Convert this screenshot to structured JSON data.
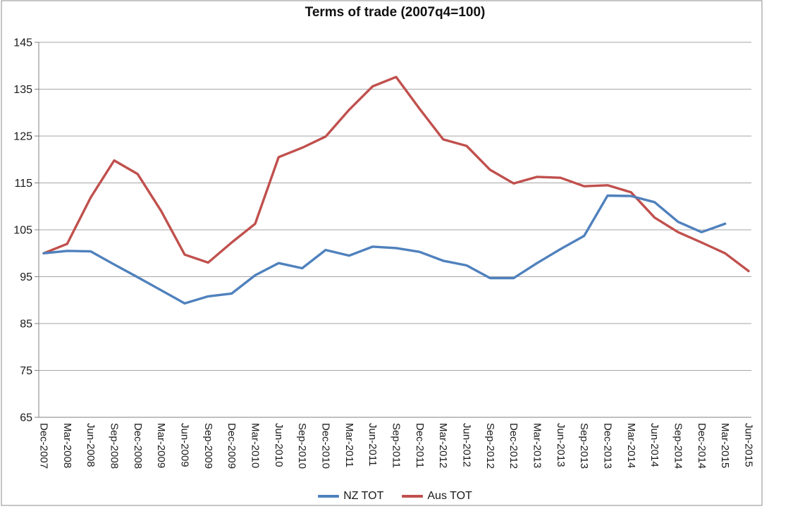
{
  "chart_data": {
    "type": "line",
    "title": "Terms of trade (2007q4=100)",
    "categories": [
      "Dec-2007",
      "Mar-2008",
      "Jun-2008",
      "Sep-2008",
      "Dec-2008",
      "Mar-2009",
      "Jun-2009",
      "Sep-2009",
      "Dec-2009",
      "Mar-2010",
      "Jun-2010",
      "Sep-2010",
      "Dec-2010",
      "Mar-2011",
      "Jun-2011",
      "Sep-2011",
      "Dec-2011",
      "Mar-2012",
      "Jun-2012",
      "Sep-2012",
      "Dec-2012",
      "Mar-2013",
      "Jun-2013",
      "Sep-2013",
      "Dec-2013",
      "Mar-2014",
      "Jun-2014",
      "Sep-2014",
      "Dec-2014",
      "Mar-2015",
      "Jun-2015"
    ],
    "series": [
      {
        "name": "NZ TOT",
        "color": "#4F81BD",
        "values": [
          100.0,
          100.5,
          100.4,
          97.6,
          94.9,
          92.1,
          89.3,
          90.8,
          91.4,
          95.3,
          97.9,
          96.8,
          100.7,
          99.5,
          101.4,
          101.1,
          100.3,
          98.4,
          97.4,
          94.7,
          94.7,
          97.9,
          100.9,
          103.7,
          112.3,
          112.2,
          110.9,
          106.7,
          104.5,
          106.3,
          null
        ]
      },
      {
        "name": "Aus TOT",
        "color": "#C0504D",
        "values": [
          100.0,
          102.0,
          111.9,
          119.8,
          116.9,
          109.0,
          99.7,
          98.0,
          102.3,
          106.3,
          120.5,
          122.5,
          124.9,
          130.6,
          135.6,
          137.6,
          130.8,
          124.3,
          122.9,
          117.8,
          114.9,
          116.3,
          116.1,
          114.3,
          114.5,
          113.0,
          107.6,
          104.5,
          102.3,
          100.0,
          96.2
        ]
      }
    ],
    "yticks": [
      65,
      75,
      85,
      95,
      105,
      115,
      125,
      135,
      145
    ],
    "ylim": [
      65,
      145
    ],
    "grid": true,
    "legend_position": "bottom",
    "x_label_rotation": 90
  },
  "colors": {
    "gridline": "#A6A6A6",
    "axis": "#808080",
    "chart_border": "#8C8C8C",
    "tick_text": "#1a1a1a",
    "title_text": "#111111"
  }
}
